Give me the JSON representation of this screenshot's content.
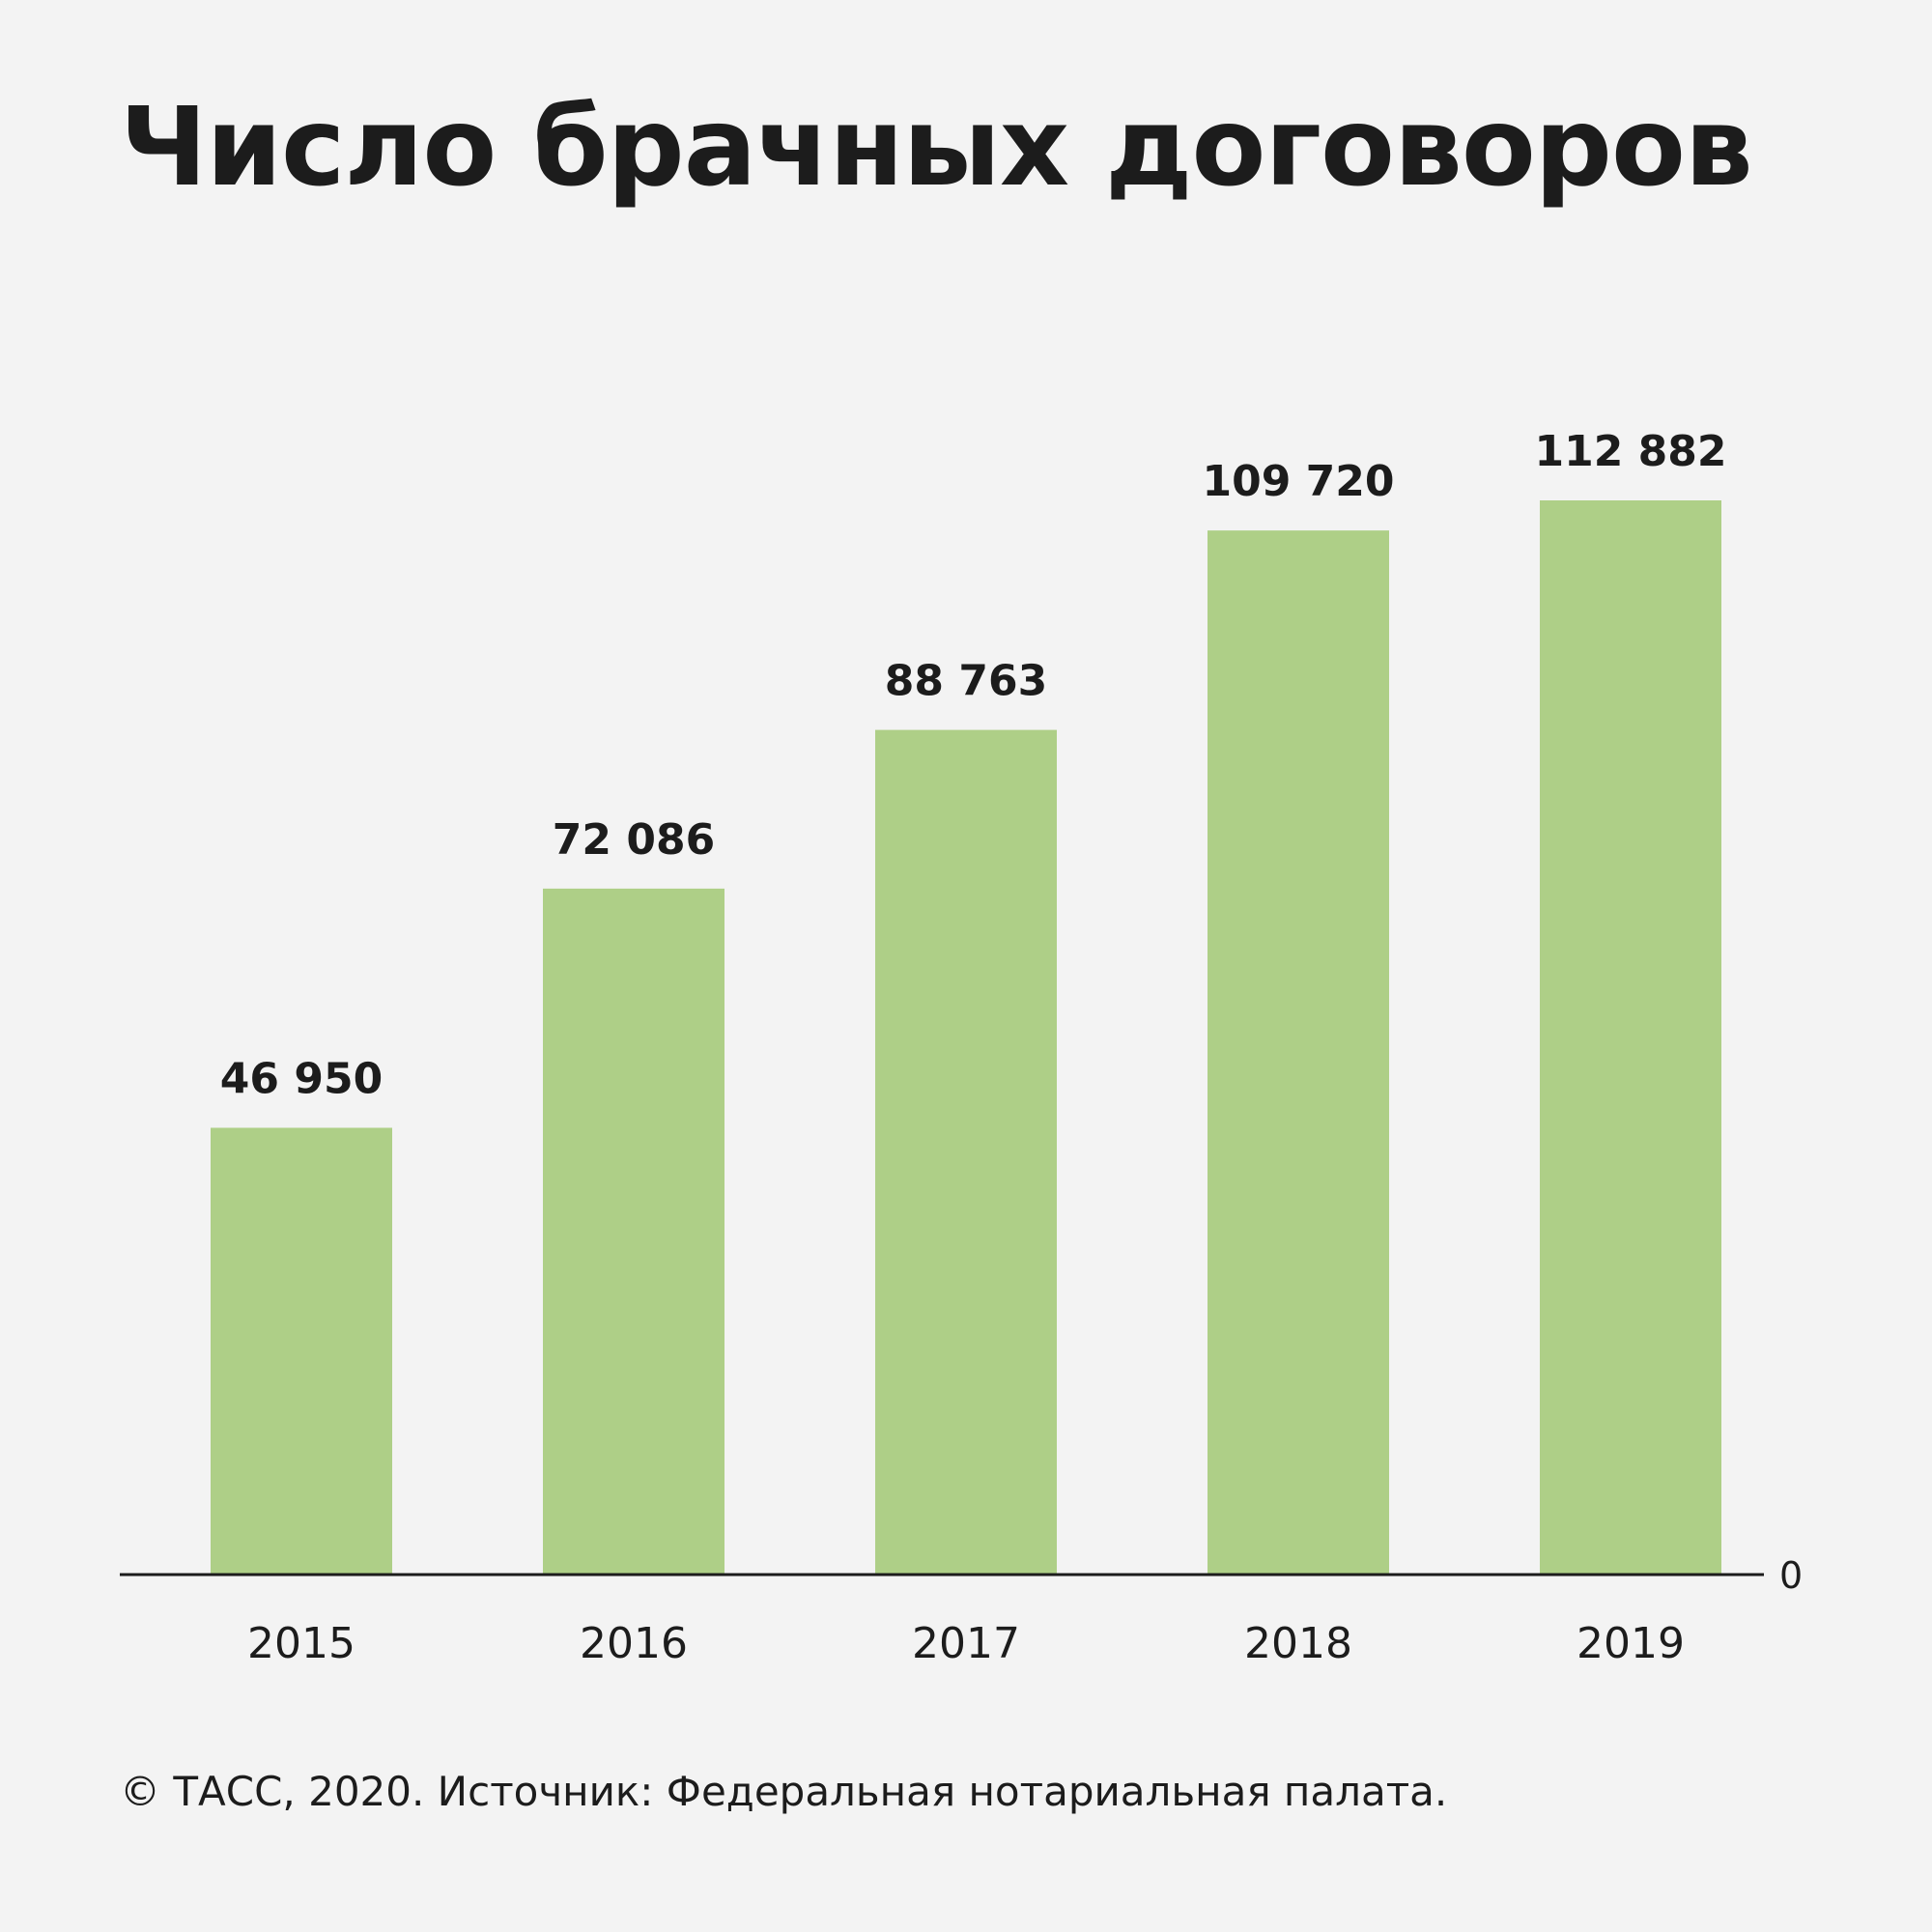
{
  "chart_data": {
    "type": "bar",
    "title": "Число брачных договоров",
    "categories": [
      "2015",
      "2016",
      "2017",
      "2018",
      "2019"
    ],
    "values": [
      46950,
      72086,
      88763,
      109720,
      112882
    ],
    "value_labels": [
      "46 950",
      "72 086",
      "88 763",
      "109 720",
      "112 882"
    ],
    "xlabel": "",
    "ylabel": "",
    "ylim": [
      0,
      112882
    ],
    "y_tick_labels": [
      "0"
    ],
    "y_axis_side": "right",
    "grid": false,
    "bar_color": "#aecf87",
    "source": "© ТАСС, 2020. Источник: Федеральная нотариальная палата."
  }
}
